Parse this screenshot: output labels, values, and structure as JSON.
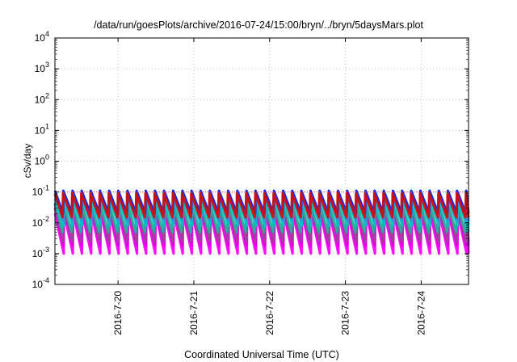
{
  "chart_data": {
    "type": "line",
    "title": "/data/run/goesPlots/archive/2016-07-24/15:00/bryn/../bryn/5daysMars.plot",
    "xlabel": "Coordinated Universal Time (UTC)",
    "ylabel": "cSv/day",
    "y_scale": "log",
    "ylim": [
      0.0001,
      10000
    ],
    "y_ticks": [
      {
        "value": 0.0001,
        "mantissa": "10",
        "exp": "-4"
      },
      {
        "value": 0.001,
        "mantissa": "10",
        "exp": "-3"
      },
      {
        "value": 0.01,
        "mantissa": "10",
        "exp": "-2"
      },
      {
        "value": 0.1,
        "mantissa": "10",
        "exp": "-1"
      },
      {
        "value": 1,
        "mantissa": "10",
        "exp": "0"
      },
      {
        "value": 10,
        "mantissa": "10",
        "exp": "1"
      },
      {
        "value": 100,
        "mantissa": "10",
        "exp": "2"
      },
      {
        "value": 1000,
        "mantissa": "10",
        "exp": "3"
      },
      {
        "value": 10000,
        "mantissa": "10",
        "exp": "4"
      }
    ],
    "xlim": [
      "2016-07-19 04:00",
      "2016-07-24 15:00"
    ],
    "x_ticks": [
      "2016-7-20",
      "2016-7-21",
      "2016-7-22",
      "2016-7-23",
      "2016-7-24"
    ],
    "grid": true,
    "sawtooth_period_hours": 2.9,
    "reference_line": {
      "value": 0.1,
      "color": "#ff3030",
      "style": "dotted"
    },
    "series": [
      {
        "color": "#ff00ff",
        "peak": 0.02,
        "trough": 0.001
      },
      {
        "color": "#e000e0",
        "peak": 0.03,
        "trough": 0.0018
      },
      {
        "color": "#a0409a",
        "peak": 0.04,
        "trough": 0.0025
      },
      {
        "color": "#20b0a0",
        "peak": 0.045,
        "trough": 0.005
      },
      {
        "color": "#00c0c0",
        "peak": 0.06,
        "trough": 0.008
      },
      {
        "color": "#3a8fd8",
        "peak": 0.08,
        "trough": 0.012
      },
      {
        "color": "#1020e0",
        "peak": 0.11,
        "trough": 0.02
      },
      {
        "color": "#d01010",
        "peak": 0.09,
        "trough": 0.015
      }
    ]
  }
}
